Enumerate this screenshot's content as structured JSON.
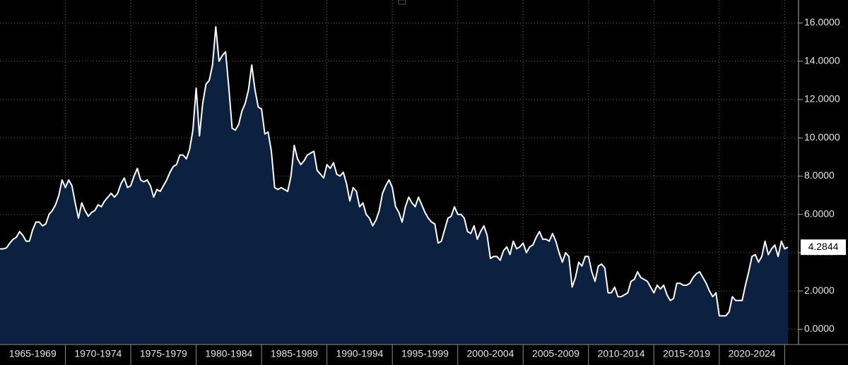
{
  "chart_data": {
    "type": "area",
    "values": [
      4.2,
      4.2,
      4.25,
      4.5,
      4.7,
      4.8,
      5.1,
      4.9,
      4.6,
      4.6,
      5.2,
      5.6,
      5.6,
      5.4,
      5.5,
      6.0,
      6.2,
      6.5,
      7.0,
      7.8,
      7.4,
      7.8,
      7.5,
      6.6,
      5.8,
      6.6,
      6.2,
      5.9,
      6.1,
      6.2,
      6.5,
      6.4,
      6.7,
      6.9,
      7.1,
      6.9,
      7.1,
      7.6,
      7.9,
      7.4,
      7.5,
      8.0,
      8.4,
      7.8,
      7.7,
      7.8,
      7.5,
      6.9,
      7.3,
      7.2,
      7.5,
      7.8,
      8.2,
      8.5,
      8.6,
      9.1,
      9.1,
      8.9,
      9.4,
      10.4,
      12.6,
      10.1,
      11.8,
      12.8,
      13.0,
      13.8,
      15.8,
      14.0,
      14.3,
      14.5,
      12.6,
      10.5,
      10.4,
      10.7,
      11.4,
      11.8,
      12.5,
      13.8,
      12.5,
      11.6,
      11.5,
      10.2,
      10.3,
      9.3,
      7.4,
      7.3,
      7.4,
      7.3,
      7.2,
      8.0,
      9.6,
      8.9,
      8.6,
      8.8,
      9.1,
      9.2,
      9.3,
      8.3,
      8.1,
      7.9,
      8.6,
      8.4,
      8.7,
      8.1,
      8.0,
      8.2,
      7.6,
      6.7,
      7.4,
      7.2,
      6.4,
      6.6,
      6.0,
      5.8,
      5.4,
      5.7,
      6.2,
      7.1,
      7.5,
      7.8,
      7.4,
      6.4,
      6.1,
      5.6,
      6.4,
      6.9,
      6.6,
      6.4,
      6.9,
      6.5,
      6.1,
      5.8,
      5.6,
      5.5,
      4.5,
      4.6,
      5.2,
      5.8,
      5.9,
      6.4,
      6.0,
      6.0,
      5.8,
      5.1,
      5.0,
      5.4,
      4.7,
      5.1,
      5.4,
      4.9,
      3.7,
      3.8,
      3.8,
      3.6,
      4.1,
      4.3,
      3.9,
      4.6,
      4.2,
      4.3,
      4.5,
      4.0,
      4.3,
      4.4,
      4.8,
      5.1,
      4.7,
      4.7,
      4.6,
      5.0,
      4.6,
      4.0,
      3.5,
      4.0,
      3.8,
      2.2,
      2.7,
      3.5,
      3.3,
      3.8,
      3.8,
      3.0,
      2.5,
      3.3,
      3.4,
      3.2,
      1.9,
      1.9,
      2.2,
      1.7,
      1.7,
      1.8,
      1.9,
      2.5,
      2.6,
      3.0,
      2.7,
      2.6,
      2.5,
      2.2,
      1.9,
      2.3,
      2.1,
      2.3,
      1.8,
      1.5,
      1.6,
      2.4,
      2.4,
      2.3,
      2.3,
      2.4,
      2.7,
      2.9,
      3.0,
      2.7,
      2.4,
      2.0,
      1.7,
      1.9,
      0.7,
      0.7,
      0.7,
      0.9,
      1.7,
      1.5,
      1.5,
      1.5,
      2.3,
      3.0,
      3.8,
      3.9,
      3.5,
      3.8,
      4.6,
      3.9,
      4.2,
      4.4,
      3.8,
      4.6,
      4.2,
      4.2844
    ],
    "color": "#0b213f",
    "line_color": "#ffffff",
    "xlim": [
      0,
      241
    ],
    "xticks": [
      {
        "value": 10,
        "label": "1965-1969"
      },
      {
        "value": 30,
        "label": "1970-1974"
      },
      {
        "value": 50,
        "label": "1975-1979"
      },
      {
        "value": 70,
        "label": "1980-1984"
      },
      {
        "value": 90,
        "label": "1985-1989"
      },
      {
        "value": 110,
        "label": "1990-1994"
      },
      {
        "value": 130,
        "label": "1995-1999"
      },
      {
        "value": 150,
        "label": "2000-2004"
      },
      {
        "value": 170,
        "label": "2005-2009"
      },
      {
        "value": 190,
        "label": "2010-2014"
      },
      {
        "value": 210,
        "label": "2015-2019"
      },
      {
        "value": 230,
        "label": "2020-2024"
      }
    ],
    "ylim": [
      -0.8,
      17.2
    ],
    "yticks": [
      {
        "value": 0,
        "label": "0.0000"
      },
      {
        "value": 2,
        "label": "2.0000"
      },
      {
        "value": 4,
        "label": "4.0000"
      },
      {
        "value": 6,
        "label": "6.0000"
      },
      {
        "value": 8,
        "label": "8.0000"
      },
      {
        "value": 10,
        "label": "10.0000"
      },
      {
        "value": 12,
        "label": "12.0000"
      },
      {
        "value": 14,
        "label": "14.0000"
      },
      {
        "value": 16,
        "label": "16.0000"
      }
    ],
    "grid": true
  }
}
